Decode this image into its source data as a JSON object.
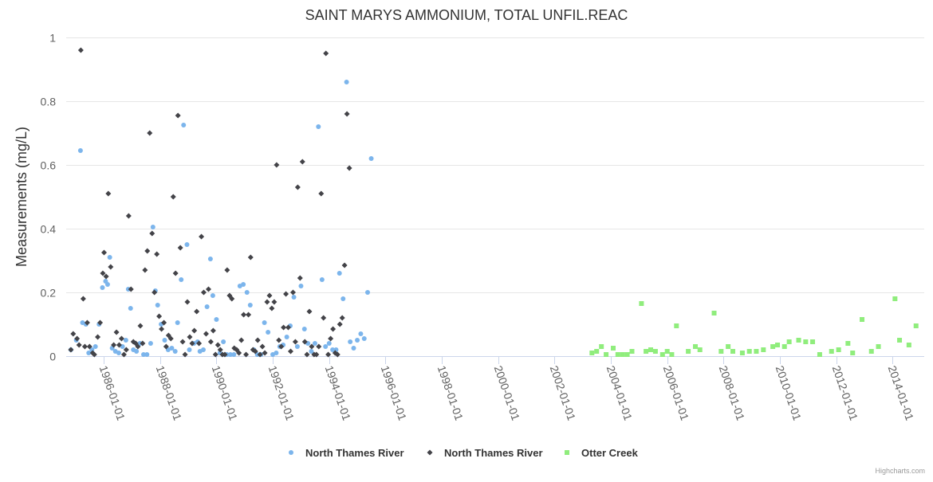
{
  "credits": "Highcharts.com",
  "chart_data": {
    "type": "scatter",
    "title": "SAINT MARYS AMMONIUM, TOTAL UNFIL.REAC",
    "ylabel": "Measurements (mg/L)",
    "xlabel": "",
    "x_axis": "datetime",
    "xlim": [
      "1984-09-01",
      "2015-02-15"
    ],
    "ylim": [
      0,
      1
    ],
    "yticks": [
      0,
      0.2,
      0.4,
      0.6,
      0.8,
      1
    ],
    "ytick_labels": [
      "0",
      "0.2",
      "0.4",
      "0.6",
      "0.8",
      "1"
    ],
    "xticks": [
      "1986-01-01",
      "1988-01-01",
      "1990-01-01",
      "1992-01-01",
      "1994-01-01",
      "1996-01-01",
      "1998-01-01",
      "2000-01-01",
      "2002-01-01",
      "2004-01-01",
      "2006-01-01",
      "2008-01-01",
      "2010-01-01",
      "2012-01-01",
      "2014-01-01"
    ],
    "grid": true,
    "legend_position": "bottom-center",
    "series": [
      {
        "name": "North Thames River",
        "color": "#7cb5ec",
        "marker": "circle",
        "points": [
          [
            "1984-11-01",
            0.02
          ],
          [
            "1985-01-10",
            0.05
          ],
          [
            "1985-03-05",
            0.645
          ],
          [
            "1985-04-01",
            0.105
          ],
          [
            "1985-05-15",
            0.1
          ],
          [
            "1985-06-20",
            0.01
          ],
          [
            "1985-08-01",
            0.02
          ],
          [
            "1985-09-15",
            0.03
          ],
          [
            "1985-11-01",
            0.1
          ],
          [
            "1985-12-15",
            0.215
          ],
          [
            "1986-01-25",
            0.235
          ],
          [
            "1986-02-20",
            0.225
          ],
          [
            "1986-03-20",
            0.31
          ],
          [
            "1986-04-20",
            0.025
          ],
          [
            "1986-06-01",
            0.015
          ],
          [
            "1986-07-15",
            0.01
          ],
          [
            "1986-09-01",
            0.03
          ],
          [
            "1986-10-15",
            0.05
          ],
          [
            "1986-11-15",
            0.21
          ],
          [
            "1986-12-15",
            0.15
          ],
          [
            "1987-01-20",
            0.02
          ],
          [
            "1987-03-01",
            0.015
          ],
          [
            "1987-04-15",
            0.04
          ],
          [
            "1987-06-01",
            0.005
          ],
          [
            "1987-07-15",
            0.005
          ],
          [
            "1987-09-01",
            0.04
          ],
          [
            "1987-10-01",
            0.405
          ],
          [
            "1987-11-01",
            0.205
          ],
          [
            "1987-12-01",
            0.16
          ],
          [
            "1988-01-15",
            0.1
          ],
          [
            "1988-03-01",
            0.05
          ],
          [
            "1988-04-15",
            0.02
          ],
          [
            "1988-06-01",
            0.025
          ],
          [
            "1988-07-15",
            0.015
          ],
          [
            "1988-08-15",
            0.105
          ],
          [
            "1988-10-01",
            0.24
          ],
          [
            "1988-11-01",
            0.725
          ],
          [
            "1988-12-15",
            0.35
          ],
          [
            "1989-01-15",
            0.02
          ],
          [
            "1989-03-15",
            0.04
          ],
          [
            "1989-05-01",
            0.045
          ],
          [
            "1989-06-01",
            0.015
          ],
          [
            "1989-07-15",
            0.02
          ],
          [
            "1989-09-01",
            0.155
          ],
          [
            "1989-10-15",
            0.305
          ],
          [
            "1989-11-15",
            0.19
          ],
          [
            "1990-01-01",
            0.115
          ],
          [
            "1990-02-15",
            0.01
          ],
          [
            "1990-04-01",
            0.045
          ],
          [
            "1990-05-15",
            0.005
          ],
          [
            "1990-07-01",
            0.005
          ],
          [
            "1990-08-15",
            0.005
          ],
          [
            "1990-11-01",
            0.22
          ],
          [
            "1990-12-15",
            0.225
          ],
          [
            "1991-02-01",
            0.2
          ],
          [
            "1991-03-15",
            0.16
          ],
          [
            "1991-05-01",
            0.02
          ],
          [
            "1991-06-15",
            0.005
          ],
          [
            "1991-08-01",
            0.005
          ],
          [
            "1991-09-15",
            0.105
          ],
          [
            "1991-11-01",
            0.075
          ],
          [
            "1992-01-01",
            0.005
          ],
          [
            "1992-02-15",
            0.01
          ],
          [
            "1992-04-01",
            0.03
          ],
          [
            "1992-05-15",
            0.035
          ],
          [
            "1992-07-01",
            0.06
          ],
          [
            "1992-08-15",
            0.095
          ],
          [
            "1992-10-01",
            0.185
          ],
          [
            "1992-11-15",
            0.03
          ],
          [
            "1993-01-01",
            0.22
          ],
          [
            "1993-02-15",
            0.085
          ],
          [
            "1993-04-01",
            0.04
          ],
          [
            "1993-05-15",
            0.015
          ],
          [
            "1993-07-01",
            0.04
          ],
          [
            "1993-08-15",
            0.72
          ],
          [
            "1993-10-01",
            0.24
          ],
          [
            "1993-11-15",
            0.03
          ],
          [
            "1994-01-01",
            0.04
          ],
          [
            "1994-02-15",
            0.02
          ],
          [
            "1994-04-01",
            0.02
          ],
          [
            "1994-05-15",
            0.26
          ],
          [
            "1994-07-01",
            0.18
          ],
          [
            "1994-08-15",
            0.86
          ],
          [
            "1994-10-01",
            0.045
          ],
          [
            "1994-11-15",
            0.025
          ],
          [
            "1995-01-01",
            0.05
          ],
          [
            "1995-02-15",
            0.07
          ],
          [
            "1995-04-01",
            0.055
          ],
          [
            "1995-05-15",
            0.2
          ],
          [
            "1995-07-01",
            0.62
          ]
        ]
      },
      {
        "name": "North Thames River",
        "color": "#434348",
        "marker": "diamond",
        "points": [
          [
            "1984-11-01",
            0.02
          ],
          [
            "1984-12-01",
            0.07
          ],
          [
            "1985-01-20",
            0.055
          ],
          [
            "1985-02-15",
            0.035
          ],
          [
            "1985-03-10",
            0.96
          ],
          [
            "1985-04-10",
            0.18
          ],
          [
            "1985-05-01",
            0.03
          ],
          [
            "1985-06-01",
            0.105
          ],
          [
            "1985-07-01",
            0.03
          ],
          [
            "1985-08-10",
            0.01
          ],
          [
            "1985-09-01",
            0.005
          ],
          [
            "1985-10-15",
            0.06
          ],
          [
            "1985-11-15",
            0.105
          ],
          [
            "1985-12-20",
            0.26
          ],
          [
            "1986-01-05",
            0.325
          ],
          [
            "1986-02-01",
            0.25
          ],
          [
            "1986-03-01",
            0.51
          ],
          [
            "1986-04-01",
            0.28
          ],
          [
            "1986-05-10",
            0.035
          ],
          [
            "1986-06-15",
            0.075
          ],
          [
            "1986-07-20",
            0.035
          ],
          [
            "1986-08-20",
            0.055
          ],
          [
            "1986-09-20",
            0.005
          ],
          [
            "1986-10-20",
            0.02
          ],
          [
            "1986-11-20",
            0.44
          ],
          [
            "1986-12-20",
            0.21
          ],
          [
            "1987-01-20",
            0.045
          ],
          [
            "1987-02-20",
            0.04
          ],
          [
            "1987-03-20",
            0.03
          ],
          [
            "1987-04-20",
            0.095
          ],
          [
            "1987-05-20",
            0.04
          ],
          [
            "1987-06-20",
            0.27
          ],
          [
            "1987-07-20",
            0.33
          ],
          [
            "1987-08-20",
            0.7
          ],
          [
            "1987-09-20",
            0.385
          ],
          [
            "1987-10-20",
            0.2
          ],
          [
            "1987-11-20",
            0.32
          ],
          [
            "1987-12-20",
            0.125
          ],
          [
            "1988-01-20",
            0.085
          ],
          [
            "1988-02-20",
            0.105
          ],
          [
            "1988-03-20",
            0.03
          ],
          [
            "1988-04-20",
            0.065
          ],
          [
            "1988-05-20",
            0.055
          ],
          [
            "1988-06-20",
            0.5
          ],
          [
            "1988-07-20",
            0.26
          ],
          [
            "1988-08-20",
            0.755
          ],
          [
            "1988-09-20",
            0.34
          ],
          [
            "1988-10-20",
            0.045
          ],
          [
            "1988-11-20",
            0.005
          ],
          [
            "1988-12-20",
            0.17
          ],
          [
            "1989-01-20",
            0.06
          ],
          [
            "1989-02-20",
            0.04
          ],
          [
            "1989-03-20",
            0.08
          ],
          [
            "1989-04-20",
            0.14
          ],
          [
            "1989-05-20",
            0.04
          ],
          [
            "1989-06-20",
            0.375
          ],
          [
            "1989-07-20",
            0.2
          ],
          [
            "1989-08-20",
            0.07
          ],
          [
            "1989-09-20",
            0.21
          ],
          [
            "1989-10-20",
            0.045
          ],
          [
            "1989-11-20",
            0.08
          ],
          [
            "1989-12-20",
            0.005
          ],
          [
            "1990-01-20",
            0.035
          ],
          [
            "1990-02-20",
            0.02
          ],
          [
            "1990-03-20",
            0.005
          ],
          [
            "1990-04-20",
            0.005
          ],
          [
            "1990-05-20",
            0.27
          ],
          [
            "1990-06-20",
            0.19
          ],
          [
            "1990-07-20",
            0.18
          ],
          [
            "1990-08-20",
            0.025
          ],
          [
            "1990-09-20",
            0.02
          ],
          [
            "1990-10-20",
            0.01
          ],
          [
            "1990-11-20",
            0.05
          ],
          [
            "1990-12-20",
            0.13
          ],
          [
            "1991-01-20",
            0.005
          ],
          [
            "1991-02-20",
            0.13
          ],
          [
            "1991-03-20",
            0.31
          ],
          [
            "1991-04-20",
            0.02
          ],
          [
            "1991-05-20",
            0.015
          ],
          [
            "1991-06-20",
            0.05
          ],
          [
            "1991-07-20",
            0.005
          ],
          [
            "1991-08-20",
            0.03
          ],
          [
            "1991-09-20",
            0.01
          ],
          [
            "1991-10-20",
            0.17
          ],
          [
            "1991-11-20",
            0.19
          ],
          [
            "1991-12-20",
            0.15
          ],
          [
            "1992-01-20",
            0.17
          ],
          [
            "1992-02-20",
            0.6
          ],
          [
            "1992-03-20",
            0.05
          ],
          [
            "1992-04-20",
            0.03
          ],
          [
            "1992-05-20",
            0.09
          ],
          [
            "1992-06-20",
            0.195
          ],
          [
            "1992-07-20",
            0.09
          ],
          [
            "1992-08-20",
            0.015
          ],
          [
            "1992-09-20",
            0.2
          ],
          [
            "1992-10-20",
            0.045
          ],
          [
            "1992-11-20",
            0.53
          ],
          [
            "1992-12-20",
            0.245
          ],
          [
            "1993-01-20",
            0.61
          ],
          [
            "1993-02-20",
            0.045
          ],
          [
            "1993-03-20",
            0.005
          ],
          [
            "1993-04-20",
            0.14
          ],
          [
            "1993-05-20",
            0.03
          ],
          [
            "1993-06-20",
            0.005
          ],
          [
            "1993-07-20",
            0.005
          ],
          [
            "1993-08-20",
            0.03
          ],
          [
            "1993-09-20",
            0.51
          ],
          [
            "1993-10-20",
            0.12
          ],
          [
            "1993-11-20",
            0.95
          ],
          [
            "1993-12-20",
            0.005
          ],
          [
            "1994-01-20",
            0.055
          ],
          [
            "1994-02-20",
            0.085
          ],
          [
            "1994-03-20",
            0.01
          ],
          [
            "1994-04-20",
            0.005
          ],
          [
            "1994-05-20",
            0.1
          ],
          [
            "1994-06-20",
            0.12
          ],
          [
            "1994-07-20",
            0.285
          ],
          [
            "1994-08-20",
            0.76
          ],
          [
            "1994-09-20",
            0.59
          ]
        ]
      },
      {
        "name": "Otter Creek",
        "color": "#90ed7d",
        "marker": "square",
        "points": [
          [
            "2003-05-01",
            0.01
          ],
          [
            "2003-07-01",
            0.015
          ],
          [
            "2003-09-01",
            0.03
          ],
          [
            "2003-11-01",
            0.005
          ],
          [
            "2004-02-01",
            0.025
          ],
          [
            "2004-04-01",
            0.005
          ],
          [
            "2004-06-01",
            0.005
          ],
          [
            "2004-08-01",
            0.005
          ],
          [
            "2004-10-01",
            0.015
          ],
          [
            "2005-02-01",
            0.165
          ],
          [
            "2005-04-01",
            0.015
          ],
          [
            "2005-06-01",
            0.02
          ],
          [
            "2005-08-01",
            0.015
          ],
          [
            "2005-11-01",
            0.005
          ],
          [
            "2006-01-01",
            0.015
          ],
          [
            "2006-03-01",
            0.005
          ],
          [
            "2006-05-01",
            0.095
          ],
          [
            "2006-10-01",
            0.015
          ],
          [
            "2007-01-01",
            0.03
          ],
          [
            "2007-03-01",
            0.02
          ],
          [
            "2007-09-01",
            0.135
          ],
          [
            "2007-12-01",
            0.015
          ],
          [
            "2008-03-01",
            0.03
          ],
          [
            "2008-05-01",
            0.015
          ],
          [
            "2008-09-01",
            0.01
          ],
          [
            "2008-12-01",
            0.015
          ],
          [
            "2009-03-01",
            0.015
          ],
          [
            "2009-06-01",
            0.02
          ],
          [
            "2009-10-01",
            0.03
          ],
          [
            "2009-12-01",
            0.035
          ],
          [
            "2010-03-01",
            0.03
          ],
          [
            "2010-05-01",
            0.045
          ],
          [
            "2010-09-01",
            0.05
          ],
          [
            "2010-12-01",
            0.045
          ],
          [
            "2011-03-01",
            0.045
          ],
          [
            "2011-06-01",
            0.005
          ],
          [
            "2011-11-01",
            0.015
          ],
          [
            "2012-02-01",
            0.02
          ],
          [
            "2012-06-01",
            0.04
          ],
          [
            "2012-08-01",
            0.01
          ],
          [
            "2012-12-01",
            0.115
          ],
          [
            "2013-04-01",
            0.015
          ],
          [
            "2013-07-01",
            0.03
          ],
          [
            "2014-02-01",
            0.18
          ],
          [
            "2014-04-01",
            0.05
          ],
          [
            "2014-08-01",
            0.035
          ],
          [
            "2014-11-01",
            0.095
          ]
        ]
      }
    ]
  }
}
